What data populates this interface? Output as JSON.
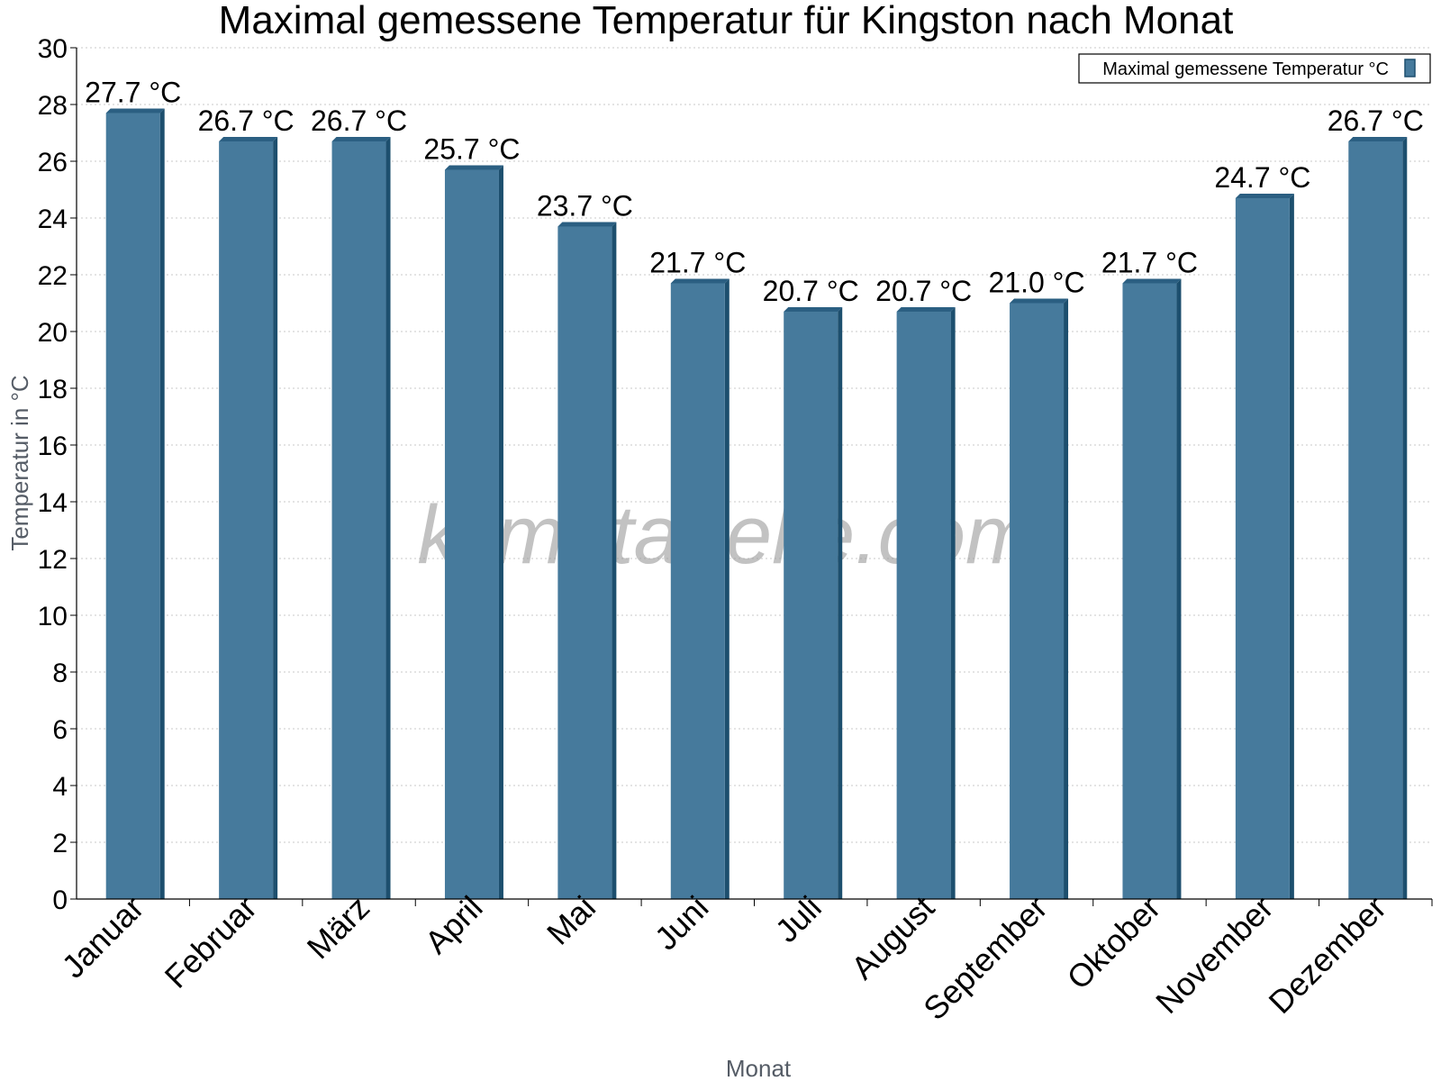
{
  "chart_data": {
    "type": "bar",
    "title": "Maximal gemessene Temperatur für Kingston nach Monat",
    "xlabel": "Monat",
    "ylabel": "Temperatur in °C",
    "ylim": [
      0,
      30
    ],
    "yticks": [
      0,
      2,
      4,
      6,
      8,
      10,
      12,
      14,
      16,
      18,
      20,
      22,
      24,
      26,
      28,
      30
    ],
    "grid": true,
    "legend_position": "top-right",
    "categories": [
      "Januar",
      "Februar",
      "März",
      "April",
      "Mai",
      "Juni",
      "Juli",
      "August",
      "September",
      "Oktober",
      "November",
      "Dezember"
    ],
    "series": [
      {
        "name": "Maximal gemessene Temperatur °C",
        "values": [
          27.7,
          26.7,
          26.7,
          25.7,
          23.7,
          21.7,
          20.7,
          20.7,
          21.0,
          21.7,
          24.7,
          26.7
        ],
        "labels": [
          "27.7 °C",
          "26.7 °C",
          "26.7 °C",
          "25.7 °C",
          "23.7 °C",
          "21.7 °C",
          "20.7 °C",
          "20.7 °C",
          "21.0 °C",
          "21.7 °C",
          "24.7 °C",
          "26.7 °C"
        ],
        "color": "#467a9c",
        "side_color": "#1d4f6e",
        "top_color": "#2b5f82"
      }
    ],
    "watermark": "klimatabelle.com"
  }
}
